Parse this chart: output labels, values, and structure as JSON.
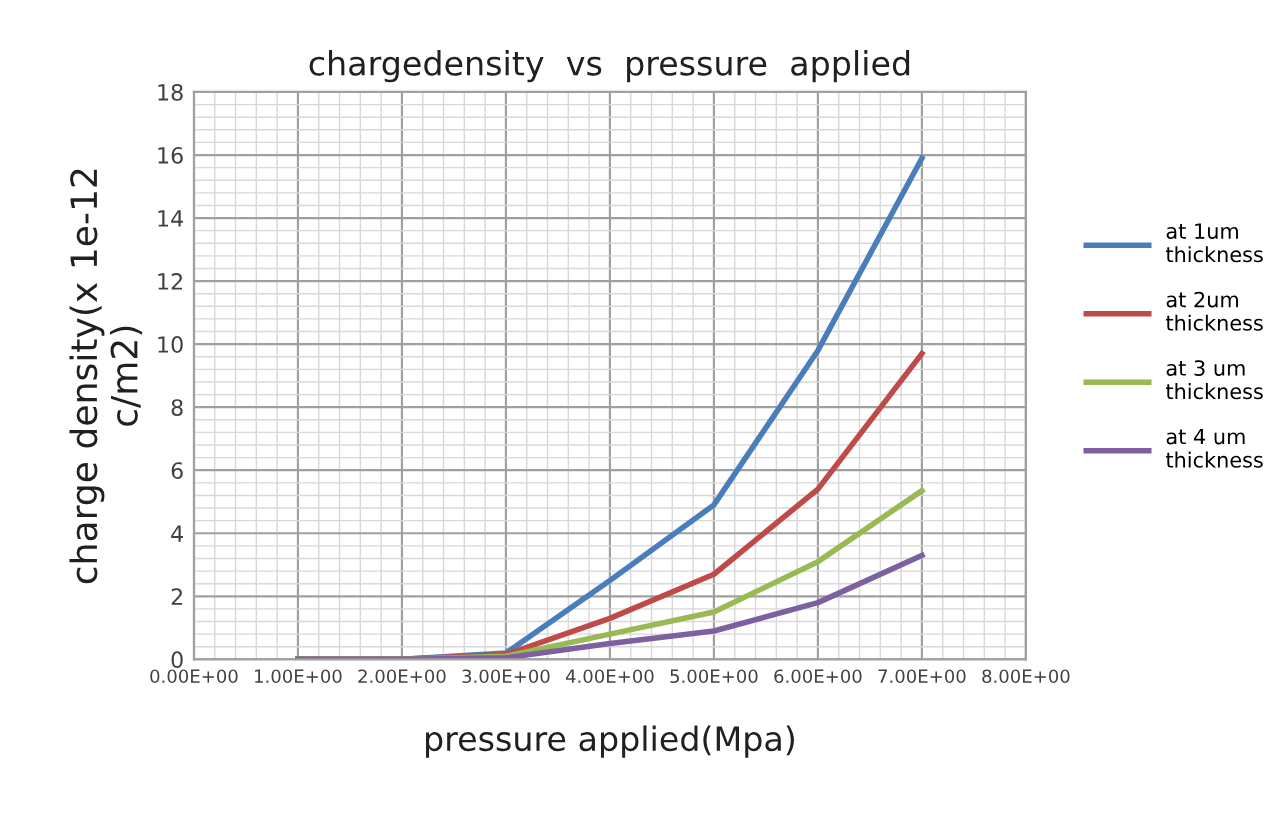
{
  "chart_data": {
    "type": "line",
    "title": "chargedensity  vs  pressure  applied",
    "xlabel": "pressure applied(Mpa)",
    "ylabel": "charge density(x 1e-12\nc/m2)",
    "x": [
      1,
      2,
      3,
      4,
      5,
      6,
      7
    ],
    "series": [
      {
        "name": "at 1um\nthickness",
        "color": "#4a7ebb",
        "values": [
          0,
          0,
          0.2,
          2.5,
          4.9,
          9.8,
          15.9
        ]
      },
      {
        "name": "at 2um\nthickness",
        "color": "#be4b48",
        "values": [
          0,
          0,
          0.15,
          1.3,
          2.7,
          5.4,
          9.7
        ]
      },
      {
        "name": "at 3 um\nthickness",
        "color": "#98b954",
        "values": [
          0,
          0,
          0.1,
          0.8,
          1.5,
          3.1,
          5.35
        ]
      },
      {
        "name": "at 4 um\nthickness",
        "color": "#7d60a0",
        "values": [
          0,
          0,
          0.05,
          0.5,
          0.9,
          1.8,
          3.3
        ]
      }
    ],
    "xlim": [
      0,
      8
    ],
    "ylim": [
      0,
      18
    ],
    "xticks": [
      {
        "value": 0,
        "label": "0.00E+00"
      },
      {
        "value": 1,
        "label": "1.00E+00"
      },
      {
        "value": 2,
        "label": "2.00E+00"
      },
      {
        "value": 3,
        "label": "3.00E+00"
      },
      {
        "value": 4,
        "label": "4.00E+00"
      },
      {
        "value": 5,
        "label": "5.00E+00"
      },
      {
        "value": 6,
        "label": "6.00E+00"
      },
      {
        "value": 7,
        "label": "7.00E+00"
      },
      {
        "value": 8,
        "label": "8.00E+00"
      }
    ],
    "yticks": [
      0,
      2,
      4,
      6,
      8,
      10,
      12,
      14,
      16,
      18
    ],
    "grid": true,
    "legend": "right",
    "marker": "none",
    "line_style": "solid"
  }
}
